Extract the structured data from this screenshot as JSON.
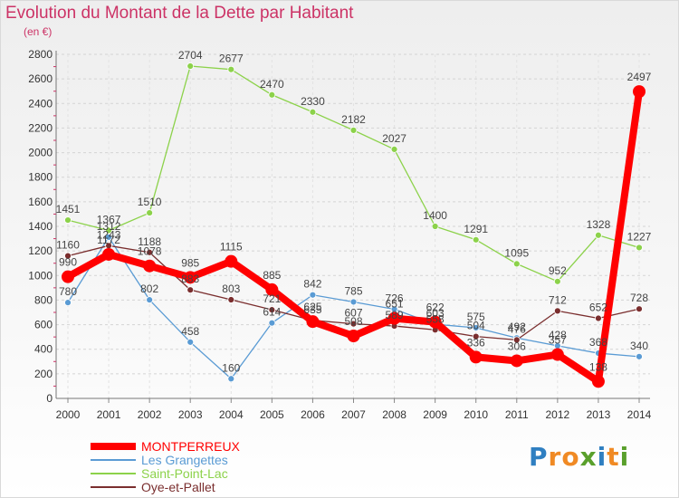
{
  "chart_data": {
    "type": "line",
    "title": "Evolution du Montant de la Dette par Habitant",
    "unit_label": "(en €)",
    "x": [
      "2000",
      "2001",
      "2002",
      "2003",
      "2004",
      "2005",
      "2006",
      "2007",
      "2008",
      "2009",
      "2010",
      "2011",
      "2012",
      "2013",
      "2014"
    ],
    "ylim": [
      0,
      2800
    ],
    "yticks": [
      0,
      200,
      400,
      600,
      800,
      1000,
      1200,
      1400,
      1600,
      1800,
      2000,
      2200,
      2400,
      2600,
      2800
    ],
    "grid": true,
    "legend_position": "bottom-left",
    "series": [
      {
        "name": "MONTPERREUX",
        "color": "#ff0000",
        "values": [
          990,
          1172,
          1078,
          985,
          1115,
          885,
          625,
          508,
          651,
          622,
          336,
          306,
          357,
          138,
          2497
        ]
      },
      {
        "name": "Les Grangettes",
        "color": "#5a9bd4",
        "values": [
          780,
          1312,
          802,
          458,
          160,
          614,
          842,
          785,
          726,
          603,
          575,
          492,
          428,
          368,
          340
        ]
      },
      {
        "name": "Saint-Point-Lac",
        "color": "#8cd24a",
        "values": [
          1451,
          1367,
          1510,
          2704,
          2677,
          2470,
          2330,
          2182,
          2027,
          1400,
          1291,
          1095,
          952,
          1328,
          1227
        ]
      },
      {
        "name": "Oye-et-Pallet",
        "color": "#7a2e2e",
        "values": [
          1160,
          1243,
          1188,
          883,
          803,
          721,
          635,
          607,
          589,
          558,
          504,
          476,
          712,
          652,
          728
        ]
      }
    ]
  },
  "brand": {
    "letters": [
      "P",
      "r",
      "o",
      "x",
      "i",
      "t",
      "i"
    ],
    "colors": [
      "#2f7fc1",
      "#f08a24",
      "#f08a24",
      "#5aa02c",
      "#2f7fc1",
      "#f08a24",
      "#5aa02c"
    ]
  }
}
